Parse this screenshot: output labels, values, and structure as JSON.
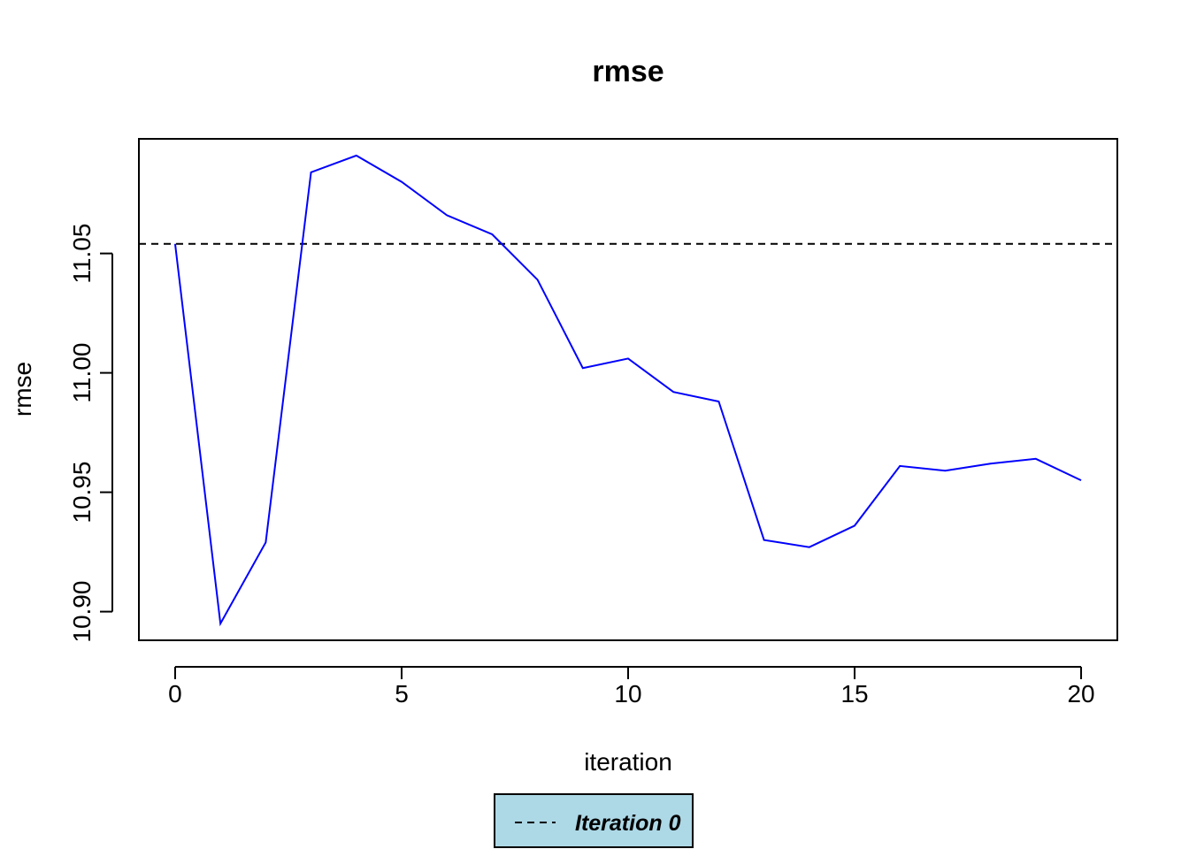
{
  "chart_data": {
    "type": "line",
    "title": "rmse",
    "xlabel": "iteration",
    "ylabel": "rmse",
    "xlim": [
      -0.8,
      20.8
    ],
    "ylim": [
      10.888,
      11.098
    ],
    "x_ticks": [
      0,
      5,
      10,
      15,
      20
    ],
    "x_tick_labels": [
      "0",
      "5",
      "10",
      "15",
      "20"
    ],
    "y_ticks": [
      10.9,
      10.95,
      11.0,
      11.05
    ],
    "y_tick_labels": [
      "10.90",
      "10.95",
      "11.00",
      "11.05"
    ],
    "grid": false,
    "series": [
      {
        "color": "#0000ff",
        "x": [
          0,
          1,
          2,
          3,
          4,
          5,
          6,
          7,
          8,
          9,
          10,
          11,
          12,
          13,
          14,
          15,
          16,
          17,
          18,
          19,
          20
        ],
        "values": [
          11.054,
          10.895,
          10.929,
          11.084,
          11.091,
          11.08,
          11.066,
          11.058,
          11.039,
          11.002,
          11.006,
          10.992,
          10.988,
          10.93,
          10.927,
          10.936,
          10.961,
          10.959,
          10.962,
          10.964,
          10.955
        ]
      }
    ],
    "reference_line": {
      "y": 11.054,
      "style": "dashed",
      "color": "#000000"
    },
    "legend": {
      "placement": "bottom-center",
      "background": "#add8e6",
      "entries": [
        {
          "label": "Iteration 0",
          "style": "dashed",
          "color": "#000000"
        }
      ]
    }
  }
}
